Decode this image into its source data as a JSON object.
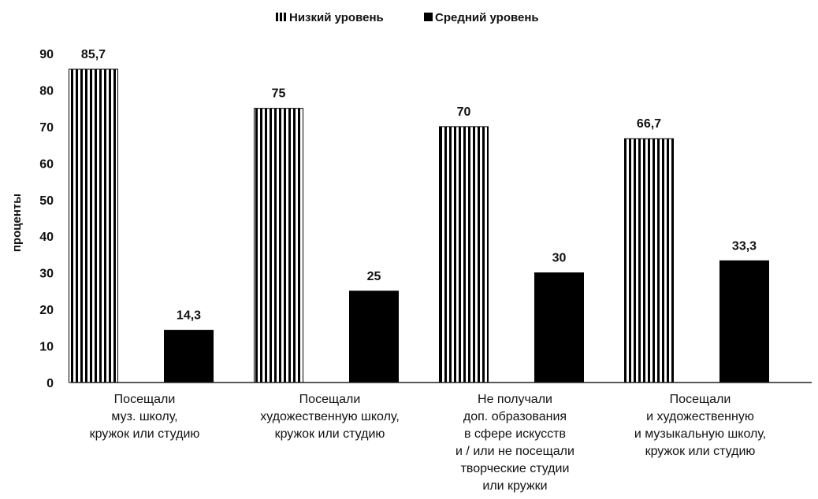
{
  "chart_data": {
    "type": "bar",
    "categories": [
      [
        "Посещали",
        "муз. школу,",
        "кружок или студию"
      ],
      [
        "Посещали",
        "художественную школу,",
        "кружок или студию"
      ],
      [
        "Не получали",
        "доп. образования",
        "в сфере искусств",
        "и / или не посещали",
        "творческие студии",
        "или кружки"
      ],
      [
        "Посещали",
        "и художественную",
        "и музыкальную школу,",
        "кружок или студию"
      ]
    ],
    "series": [
      {
        "name": "Низкий уровень",
        "values": [
          85.7,
          75,
          70,
          66.7
        ],
        "value_labels": [
          "85,7",
          "75",
          "70",
          "66,7"
        ],
        "pattern": "vertical-stripes"
      },
      {
        "name": "Средний уровень",
        "values": [
          14.3,
          25,
          30,
          33.3
        ],
        "value_labels": [
          "14,3",
          "25",
          "30",
          "33,3"
        ],
        "pattern": "solid"
      }
    ],
    "ylabel": "проценты",
    "xlabel": "",
    "ylim": [
      0,
      90
    ],
    "yticks": [
      "0",
      "10",
      "20",
      "30",
      "40",
      "50",
      "60",
      "70",
      "80",
      "90"
    ],
    "grid": false,
    "legend_position": "top-center",
    "colors": {
      "bar": "#000000",
      "background": "#ffffff"
    }
  }
}
